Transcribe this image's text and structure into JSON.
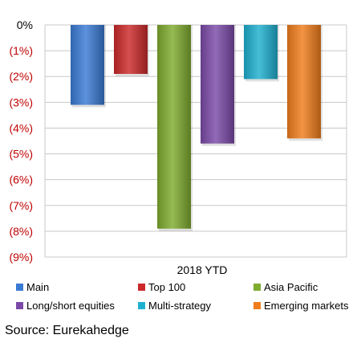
{
  "chart_data": {
    "type": "bar",
    "categories": [
      "2018 YTD"
    ],
    "series": [
      {
        "name": "Main",
        "values": [
          -3.1
        ],
        "color": "#3a7bd5"
      },
      {
        "name": "Top 100",
        "values": [
          -1.9
        ],
        "color": "#cc2a2a"
      },
      {
        "name": "Asia Pacific",
        "values": [
          -7.9
        ],
        "color": "#7fab2e"
      },
      {
        "name": "Long/short equities",
        "values": [
          -4.6
        ],
        "color": "#7b4aa8"
      },
      {
        "name": "Multi-strategy",
        "values": [
          -2.1
        ],
        "color": "#1fb0d0"
      },
      {
        "name": "Emerging markets",
        "values": [
          -4.4
        ],
        "color": "#f07d1c"
      }
    ],
    "ylim": [
      -9,
      0
    ],
    "yticks": [
      "0%",
      "(1%)",
      "(2%)",
      "(3%)",
      "(4%)",
      "(5%)",
      "(6%)",
      "(7%)",
      "(8%)",
      "(9%)"
    ],
    "negative_tick_color": "#c00000",
    "zero_tick_color": "#000000",
    "grid": true,
    "legend_position": "bottom"
  },
  "source": "Source: Eurekahedge"
}
